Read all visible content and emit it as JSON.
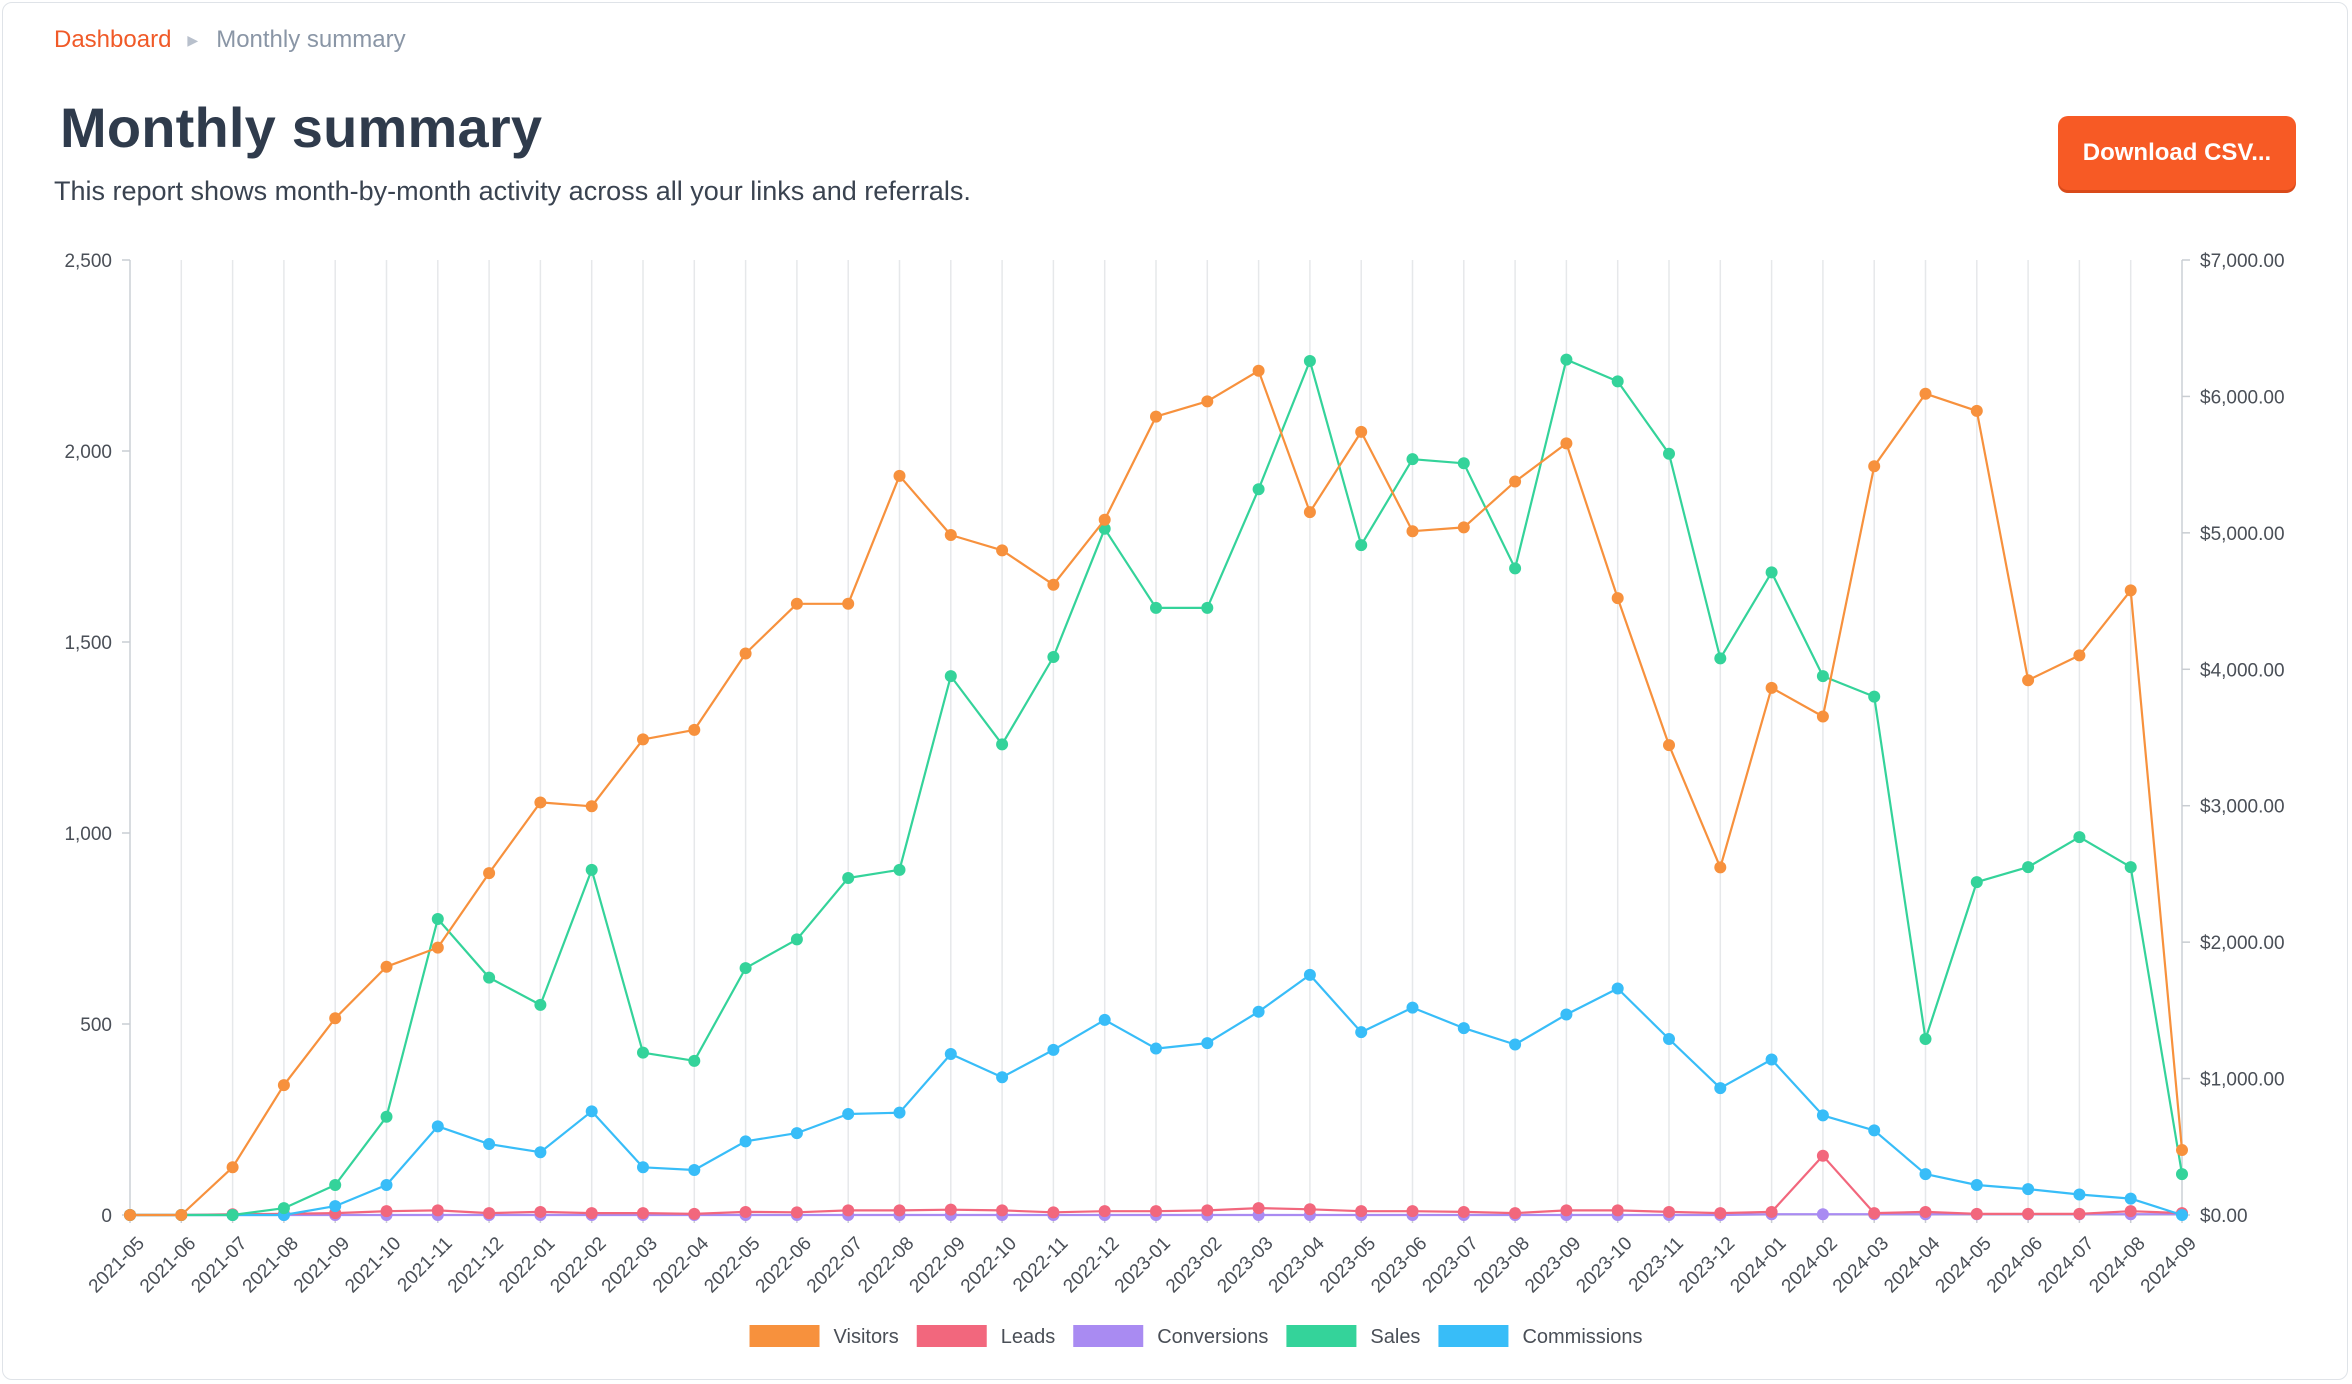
{
  "breadcrumb": {
    "home": "Dashboard",
    "current": "Monthly summary"
  },
  "page": {
    "title": "Monthly summary",
    "description": "This report shows month-by-month activity across all your links and referrals.",
    "download_label": "Download CSV..."
  },
  "chart_data": {
    "type": "line",
    "x": [
      "2021-05",
      "2021-06",
      "2021-07",
      "2021-08",
      "2021-09",
      "2021-10",
      "2021-11",
      "2021-12",
      "2022-01",
      "2022-02",
      "2022-03",
      "2022-04",
      "2022-05",
      "2022-06",
      "2022-07",
      "2022-08",
      "2022-09",
      "2022-10",
      "2022-11",
      "2022-12",
      "2023-01",
      "2023-02",
      "2023-03",
      "2023-04",
      "2023-05",
      "2023-06",
      "2023-07",
      "2023-08",
      "2023-09",
      "2023-10",
      "2023-11",
      "2023-12",
      "2024-01",
      "2024-02",
      "2024-03",
      "2024-04",
      "2024-05",
      "2024-06",
      "2024-07",
      "2024-08",
      "2024-09"
    ],
    "y_left": {
      "range": [
        0,
        2500
      ],
      "ticks": [
        "0",
        "500",
        "1,000",
        "1,500",
        "2,000",
        "2,500"
      ]
    },
    "y_right": {
      "range": [
        0,
        7000
      ],
      "ticks": [
        "$0.00",
        "$1,000.00",
        "$2,000.00",
        "$3,000.00",
        "$4,000.00",
        "$5,000.00",
        "$6,000.00",
        "$7,000.00"
      ]
    },
    "grid": "vertical",
    "legend_position": "bottom",
    "series": [
      {
        "name": "Visitors",
        "color": "#f7913d",
        "axis": "left",
        "values": [
          0,
          0,
          125,
          340,
          515,
          650,
          700,
          895,
          1080,
          1070,
          1245,
          1270,
          1470,
          1600,
          1600,
          1935,
          1780,
          1740,
          1650,
          1820,
          2090,
          2130,
          2210,
          1840,
          2050,
          1790,
          1800,
          1920,
          2020,
          1615,
          1230,
          910,
          1380,
          1305,
          1960,
          2150,
          2105,
          1400,
          1465,
          1635,
          170
        ]
      },
      {
        "name": "Leads",
        "color": "#f2677d",
        "axis": "left",
        "values": [
          0,
          0,
          2,
          3,
          5,
          10,
          12,
          5,
          8,
          5,
          5,
          3,
          8,
          7,
          12,
          12,
          14,
          12,
          7,
          10,
          10,
          12,
          18,
          15,
          10,
          10,
          8,
          5,
          12,
          12,
          8,
          5,
          8,
          155,
          5,
          8,
          3,
          3,
          3,
          10,
          5
        ]
      },
      {
        "name": "Conversions",
        "color": "#a98bf2",
        "axis": "left",
        "values": [
          0,
          0,
          0,
          0,
          0,
          0,
          0,
          0,
          0,
          0,
          0,
          0,
          0,
          0,
          0,
          0,
          0,
          0,
          0,
          0,
          0,
          0,
          0,
          0,
          0,
          0,
          0,
          0,
          0,
          0,
          0,
          0,
          2,
          2,
          2,
          2,
          2,
          2,
          2,
          2,
          2
        ]
      },
      {
        "name": "Sales",
        "color": "#34d39a",
        "axis": "right",
        "values": [
          0,
          0,
          0,
          50,
          220,
          720,
          2170,
          1740,
          1540,
          2530,
          1190,
          1130,
          1810,
          2020,
          2470,
          2530,
          3950,
          3450,
          4090,
          5030,
          4450,
          4450,
          5320,
          6260,
          4910,
          5540,
          5510,
          4740,
          6270,
          6110,
          5580,
          4080,
          4710,
          3950,
          3800,
          1290,
          2440,
          2550,
          2770,
          2550,
          300
        ]
      },
      {
        "name": "Commissions",
        "color": "#38bdf8",
        "axis": "right",
        "values": [
          0,
          0,
          0,
          0,
          65,
          220,
          650,
          520,
          460,
          760,
          350,
          330,
          540,
          600,
          740,
          750,
          1180,
          1010,
          1210,
          1430,
          1220,
          1260,
          1490,
          1760,
          1340,
          1520,
          1370,
          1250,
          1470,
          1660,
          1290,
          930,
          1140,
          730,
          620,
          300,
          220,
          190,
          150,
          120,
          0
        ]
      }
    ]
  }
}
